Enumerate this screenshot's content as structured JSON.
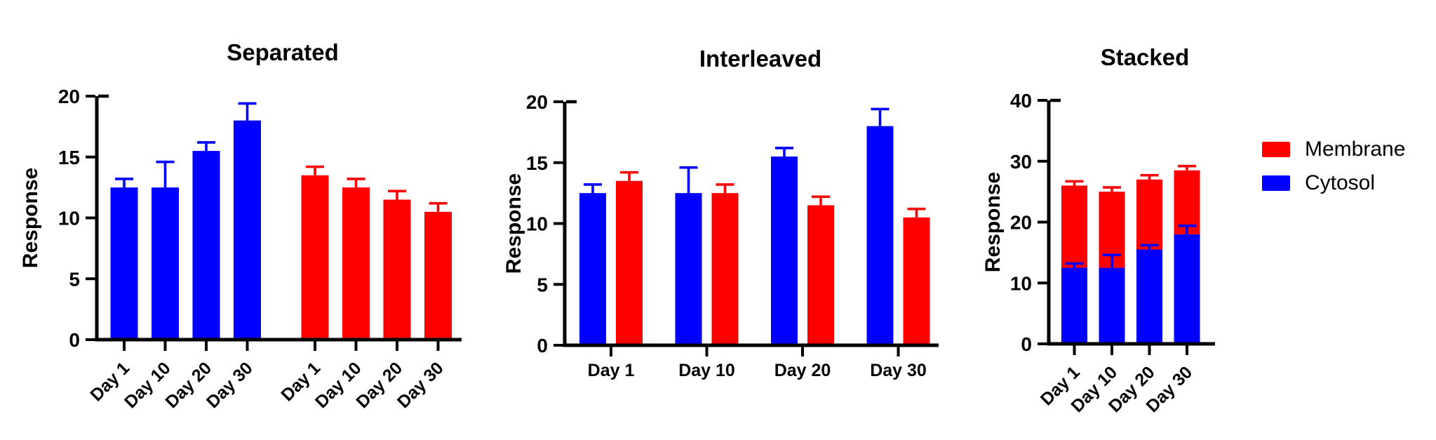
{
  "figure": {
    "background": "#ffffff",
    "text_color": "#000000",
    "axis_color": "#000000"
  },
  "legend": {
    "position": "right",
    "items": [
      {
        "label": "Membrane",
        "color": "#FF0000"
      },
      {
        "label": "Cytosol",
        "color": "#0000FF"
      }
    ]
  },
  "chart_data": [
    {
      "type": "bar",
      "arrangement": "separated",
      "title": "Separated",
      "xlabel": "",
      "ylabel": "Response",
      "ylim": [
        0,
        20
      ],
      "yticks": [
        0,
        5,
        10,
        15,
        20
      ],
      "grid": false,
      "xtick_rotation": 45,
      "categories": [
        "Day 1",
        "Day 10",
        "Day 20",
        "Day 30"
      ],
      "series": [
        {
          "name": "Cytosol",
          "color": "#0000FF",
          "values": [
            12.5,
            12.5,
            15.5,
            18.0
          ],
          "errors": [
            0.7,
            2.1,
            0.7,
            1.4
          ]
        },
        {
          "name": "Membrane",
          "color": "#FF0000",
          "values": [
            13.5,
            12.5,
            11.5,
            10.5
          ],
          "errors": [
            0.7,
            0.7,
            0.7,
            0.7
          ]
        }
      ],
      "error_bars": "upper"
    },
    {
      "type": "bar",
      "arrangement": "interleaved",
      "title": "Interleaved",
      "xlabel": "",
      "ylabel": "Response",
      "ylim": [
        0,
        20
      ],
      "yticks": [
        0,
        5,
        10,
        15,
        20
      ],
      "grid": false,
      "xtick_rotation": 0,
      "categories": [
        "Day 1",
        "Day 10",
        "Day 20",
        "Day 30"
      ],
      "series": [
        {
          "name": "Cytosol",
          "color": "#0000FF",
          "values": [
            12.5,
            12.5,
            15.5,
            18.0
          ],
          "errors": [
            0.7,
            2.1,
            0.7,
            1.4
          ]
        },
        {
          "name": "Membrane",
          "color": "#FF0000",
          "values": [
            13.5,
            12.5,
            11.5,
            10.5
          ],
          "errors": [
            0.7,
            0.7,
            0.7,
            0.7
          ]
        }
      ],
      "error_bars": "upper"
    },
    {
      "type": "bar",
      "arrangement": "stacked",
      "title": "Stacked",
      "xlabel": "",
      "ylabel": "Response",
      "ylim": [
        0,
        40
      ],
      "yticks": [
        0,
        10,
        20,
        30,
        40
      ],
      "grid": false,
      "xtick_rotation": 45,
      "categories": [
        "Day 1",
        "Day 10",
        "Day 20",
        "Day 30"
      ],
      "series": [
        {
          "name": "Cytosol",
          "color": "#0000FF",
          "values": [
            12.5,
            12.5,
            15.5,
            18.0
          ],
          "errors": [
            0.7,
            2.1,
            0.7,
            1.4
          ]
        },
        {
          "name": "Membrane",
          "color": "#FF0000",
          "values": [
            13.5,
            12.5,
            11.5,
            10.5
          ],
          "errors": [
            0.7,
            0.7,
            0.7,
            0.7
          ]
        }
      ],
      "stacked_totals": [
        26.0,
        25.0,
        27.0,
        28.5
      ],
      "error_bars": "upper"
    }
  ]
}
